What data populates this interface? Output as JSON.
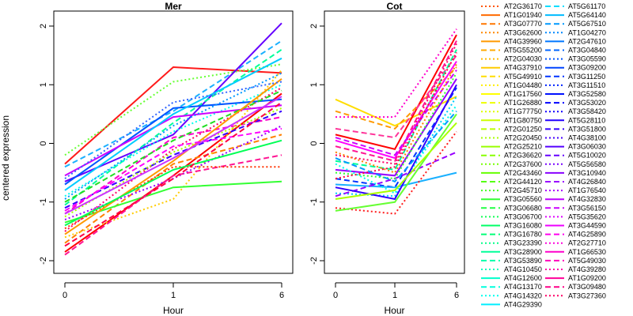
{
  "chart_data": {
    "type": "line",
    "ylabel": "centered expression",
    "xlabel": "Hour",
    "x_categories": [
      "0",
      "1",
      "6"
    ],
    "ylim": [
      -2,
      2
    ],
    "y_ticks": [
      -2,
      -1,
      0,
      1,
      2
    ],
    "panels": [
      {
        "title": "Mer",
        "traces": [
          {
            "values": [
              -0.35,
              1.3,
              1.2
            ],
            "color": "#ff1a1a"
          },
          {
            "values": [
              -0.4,
              0.55,
              1.75
            ],
            "color": "#1ab0ff"
          },
          {
            "values": [
              -0.2,
              1.05,
              1.35
            ],
            "color": "#66ff33"
          },
          {
            "values": [
              -0.65,
              0.15,
              2.05
            ],
            "color": "#6600ff"
          },
          {
            "values": [
              -1.2,
              0.1,
              0.45
            ],
            "color": "#ff00cc"
          },
          {
            "values": [
              -1.5,
              -0.1,
              0.95
            ],
            "color": "#ff0066"
          },
          {
            "values": [
              -1.85,
              -0.55,
              0.85
            ],
            "color": "#ff0000"
          },
          {
            "values": [
              -1.7,
              -0.35,
              0.15
            ],
            "color": "#ff8000"
          },
          {
            "values": [
              -1.6,
              -0.95,
              1.25
            ],
            "color": "#ffcc00"
          },
          {
            "values": [
              -1.35,
              -0.75,
              -0.65
            ],
            "color": "#33ff33"
          },
          {
            "values": [
              -1.05,
              0.35,
              1.6
            ],
            "color": "#00ff99"
          },
          {
            "values": [
              -0.9,
              0.2,
              1.0
            ],
            "color": "#00ffee"
          },
          {
            "values": [
              -0.7,
              0.6,
              0.75
            ],
            "color": "#0055ff"
          },
          {
            "values": [
              -1.1,
              -0.2,
              0.55
            ],
            "color": "#3300ff"
          },
          {
            "values": [
              -1.3,
              -0.6,
              0.3
            ],
            "color": "#9900ff"
          },
          {
            "values": [
              -0.55,
              0.45,
              0.65
            ],
            "color": "#cc00ff"
          },
          {
            "values": [
              -1.9,
              -0.55,
              -0.2
            ],
            "color": "#ff1493"
          },
          {
            "values": [
              -1.45,
              -0.4,
              -0.4
            ],
            "color": "#ff3300"
          },
          {
            "values": [
              -0.8,
              0.5,
              1.45
            ],
            "color": "#00ccff"
          },
          {
            "values": [
              -1.0,
              0.05,
              0.9
            ],
            "color": "#22dd22"
          },
          {
            "values": [
              -1.25,
              -0.15,
              0.6
            ],
            "color": "#aaff00"
          },
          {
            "values": [
              -1.55,
              -0.3,
              1.1
            ],
            "color": "#ff9900"
          },
          {
            "values": [
              -1.15,
              -0.05,
              0.25
            ],
            "color": "#ff00ff"
          },
          {
            "values": [
              -0.95,
              0.3,
              1.2
            ],
            "color": "#0099ff"
          },
          {
            "values": [
              -1.4,
              -0.45,
              0.05
            ],
            "color": "#00ff55"
          },
          {
            "values": [
              -1.75,
              -0.6,
              0.7
            ],
            "color": "#ff0044"
          },
          {
            "values": [
              -0.6,
              0.7,
              1.05
            ],
            "color": "#3366ff"
          },
          {
            "values": [
              -1.2,
              -0.25,
              0.8
            ],
            "color": "#cc33ff"
          }
        ]
      },
      {
        "title": "Cot",
        "traces": [
          {
            "values": [
              0.75,
              0.3,
              0.8
            ],
            "color": "#ffdd00"
          },
          {
            "values": [
              0.55,
              0.25,
              1.3
            ],
            "color": "#ff9900"
          },
          {
            "values": [
              0.45,
              0.45,
              1.95
            ],
            "color": "#ff00cc"
          },
          {
            "values": [
              0.15,
              -0.1,
              1.85
            ],
            "color": "#ff0000"
          },
          {
            "values": [
              0.25,
              0.1,
              1.5
            ],
            "color": "#ff3399"
          },
          {
            "values": [
              -0.2,
              -0.35,
              1.7
            ],
            "color": "#ff0066"
          },
          {
            "values": [
              -0.45,
              -0.55,
              1.1
            ],
            "color": "#9900ff"
          },
          {
            "values": [
              -0.6,
              -0.75,
              0.95
            ],
            "color": "#0033ff"
          },
          {
            "values": [
              -0.85,
              -0.9,
              0.8
            ],
            "color": "#00ccff"
          },
          {
            "values": [
              -0.7,
              -0.75,
              -0.5
            ],
            "color": "#1ab0ff"
          },
          {
            "values": [
              -0.9,
              -0.6,
              -0.15
            ],
            "color": "#9900ff"
          },
          {
            "values": [
              -1.1,
              -1.2,
              0.2
            ],
            "color": "#ff1a1a"
          },
          {
            "values": [
              -1.15,
              -1.0,
              0.5
            ],
            "color": "#66ff33"
          },
          {
            "values": [
              -0.3,
              -0.45,
              1.6
            ],
            "color": "#00ff99"
          },
          {
            "values": [
              -0.5,
              -0.6,
              1.2
            ],
            "color": "#33ff33"
          },
          {
            "values": [
              0.05,
              -0.25,
              1.4
            ],
            "color": "#ff00ff"
          },
          {
            "values": [
              -0.05,
              -0.3,
              1.75
            ],
            "color": "#ff1493"
          },
          {
            "values": [
              -0.35,
              -0.85,
              0.65
            ],
            "color": "#00ffee"
          },
          {
            "values": [
              -0.75,
              -0.95,
              1.0
            ],
            "color": "#3300ff"
          },
          {
            "values": [
              0.1,
              -0.2,
              1.25
            ],
            "color": "#cc00ff"
          },
          {
            "values": [
              -0.6,
              -0.4,
              1.55
            ],
            "color": "#ff0044"
          },
          {
            "values": [
              -0.95,
              -0.8,
              0.35
            ],
            "color": "#aaff00"
          },
          {
            "values": [
              -0.25,
              -0.65,
              0.55
            ],
            "color": "#0099ff"
          },
          {
            "values": [
              -0.15,
              -0.5,
              1.35
            ],
            "color": "#ff8000"
          }
        ]
      }
    ],
    "legend": {
      "placement": "right",
      "entries": [
        {
          "label": "AT2G36170",
          "color": "#ff5500",
          "dash": "dotted"
        },
        {
          "label": "AT1G01940",
          "color": "#ff6a00",
          "dash": "solid"
        },
        {
          "label": "AT3G07770",
          "color": "#ff7700",
          "dash": "dashed"
        },
        {
          "label": "AT3G62600",
          "color": "#ff8800",
          "dash": "dotted"
        },
        {
          "label": "AT4G39960",
          "color": "#ff9900",
          "dash": "solid"
        },
        {
          "label": "AT5G55200",
          "color": "#ffaa00",
          "dash": "dashed"
        },
        {
          "label": "AT2G04030",
          "color": "#ffbb00",
          "dash": "dotted"
        },
        {
          "label": "AT4G37910",
          "color": "#ffcc00",
          "dash": "solid"
        },
        {
          "label": "AT5G49910",
          "color": "#ffdd00",
          "dash": "dashed"
        },
        {
          "label": "AT1G04480",
          "color": "#ffee00",
          "dash": "dotted"
        },
        {
          "label": "AT1G17560",
          "color": "#ffff00",
          "dash": "solid"
        },
        {
          "label": "AT1G26880",
          "color": "#eeff00",
          "dash": "dashed"
        },
        {
          "label": "AT1G77750",
          "color": "#ddff00",
          "dash": "dotted"
        },
        {
          "label": "AT1G80750",
          "color": "#ccff00",
          "dash": "solid"
        },
        {
          "label": "AT2G01250",
          "color": "#bbff00",
          "dash": "dashed"
        },
        {
          "label": "AT2G20450",
          "color": "#aaff00",
          "dash": "dotted"
        },
        {
          "label": "AT2G25210",
          "color": "#99ff00",
          "dash": "solid"
        },
        {
          "label": "AT2G36620",
          "color": "#88ff00",
          "dash": "dashed"
        },
        {
          "label": "AT2G37600",
          "color": "#77ff00",
          "dash": "dotted"
        },
        {
          "label": "AT2G43460",
          "color": "#66ff00",
          "dash": "solid"
        },
        {
          "label": "AT2G44120",
          "color": "#55ff11",
          "dash": "dashed"
        },
        {
          "label": "AT2G45710",
          "color": "#44ff22",
          "dash": "dotted"
        },
        {
          "label": "AT3G05560",
          "color": "#33ff33",
          "dash": "solid"
        },
        {
          "label": "AT3G06680",
          "color": "#22ff44",
          "dash": "dashed"
        },
        {
          "label": "AT3G06700",
          "color": "#11ff55",
          "dash": "dotted"
        },
        {
          "label": "AT3G16080",
          "color": "#00ff66",
          "dash": "solid"
        },
        {
          "label": "AT3G16780",
          "color": "#00ff77",
          "dash": "dashed"
        },
        {
          "label": "AT3G23390",
          "color": "#00ff88",
          "dash": "dotted"
        },
        {
          "label": "AT3G28900",
          "color": "#00ff99",
          "dash": "solid"
        },
        {
          "label": "AT3G53890",
          "color": "#00ffaa",
          "dash": "dashed"
        },
        {
          "label": "AT4G10450",
          "color": "#00ffbb",
          "dash": "dotted"
        },
        {
          "label": "AT4G12600",
          "color": "#00ffcc",
          "dash": "solid"
        },
        {
          "label": "AT4G13170",
          "color": "#00ffdd",
          "dash": "dashed"
        },
        {
          "label": "AT4G14320",
          "color": "#00ffee",
          "dash": "dotted"
        },
        {
          "label": "AT4G29390",
          "color": "#00eeff",
          "dash": "solid"
        },
        {
          "label": "AT5G61170",
          "color": "#00ddff",
          "dash": "dashed"
        },
        {
          "label": "AT5G64140",
          "color": "#00bbff",
          "dash": "solid"
        },
        {
          "label": "AT5G67510",
          "color": "#0099ff",
          "dash": "dashed"
        },
        {
          "label": "AT1G04270",
          "color": "#0088ff",
          "dash": "dotted"
        },
        {
          "label": "AT2G47610",
          "color": "#0077ff",
          "dash": "solid"
        },
        {
          "label": "AT3G04840",
          "color": "#0066ff",
          "dash": "dashed"
        },
        {
          "label": "AT3G05590",
          "color": "#0055ff",
          "dash": "dotted"
        },
        {
          "label": "AT3G09200",
          "color": "#0044ff",
          "dash": "solid"
        },
        {
          "label": "AT3G11250",
          "color": "#0033ff",
          "dash": "dashed"
        },
        {
          "label": "AT3G11510",
          "color": "#0022ff",
          "dash": "dotted"
        },
        {
          "label": "AT3G52580",
          "color": "#0011ff",
          "dash": "solid"
        },
        {
          "label": "AT3G53020",
          "color": "#0000ff",
          "dash": "dashed"
        },
        {
          "label": "AT3G58420",
          "color": "#1100ff",
          "dash": "dotted"
        },
        {
          "label": "AT5G28110",
          "color": "#2200ff",
          "dash": "solid"
        },
        {
          "label": "AT3G51800",
          "color": "#3300ff",
          "dash": "dashed"
        },
        {
          "label": "AT4G38100",
          "color": "#4400ff",
          "dash": "dotted"
        },
        {
          "label": "AT3G06030",
          "color": "#5500ff",
          "dash": "solid"
        },
        {
          "label": "AT5G10020",
          "color": "#6600ff",
          "dash": "dashed"
        },
        {
          "label": "AT5G56580",
          "color": "#7700ff",
          "dash": "dotted"
        },
        {
          "label": "AT3G10940",
          "color": "#8800ff",
          "dash": "solid"
        },
        {
          "label": "AT4G26840",
          "color": "#9900ff",
          "dash": "dashed"
        },
        {
          "label": "AT1G76540",
          "color": "#aa00ff",
          "dash": "dotted"
        },
        {
          "label": "AT4G32830",
          "color": "#bb00ff",
          "dash": "solid"
        },
        {
          "label": "AT3G56150",
          "color": "#cc00ff",
          "dash": "dashed"
        },
        {
          "label": "AT5G35620",
          "color": "#dd00ff",
          "dash": "dotted"
        },
        {
          "label": "AT3G44590",
          "color": "#ee00ff",
          "dash": "solid"
        },
        {
          "label": "AT4G25890",
          "color": "#ff00ee",
          "dash": "dashed"
        },
        {
          "label": "AT2G27710",
          "color": "#ff00dd",
          "dash": "dotted"
        },
        {
          "label": "AT1G66530",
          "color": "#ff00cc",
          "dash": "solid"
        },
        {
          "label": "AT5G49030",
          "color": "#ff00bb",
          "dash": "dashed"
        },
        {
          "label": "AT4G39280",
          "color": "#ff00aa",
          "dash": "dotted"
        },
        {
          "label": "AT1G09200",
          "color": "#ff0099",
          "dash": "solid"
        },
        {
          "label": "AT3G09480",
          "color": "#ff0088",
          "dash": "dashed"
        },
        {
          "label": "AT3G27360",
          "color": "#ff0066",
          "dash": "dotted"
        }
      ]
    }
  }
}
